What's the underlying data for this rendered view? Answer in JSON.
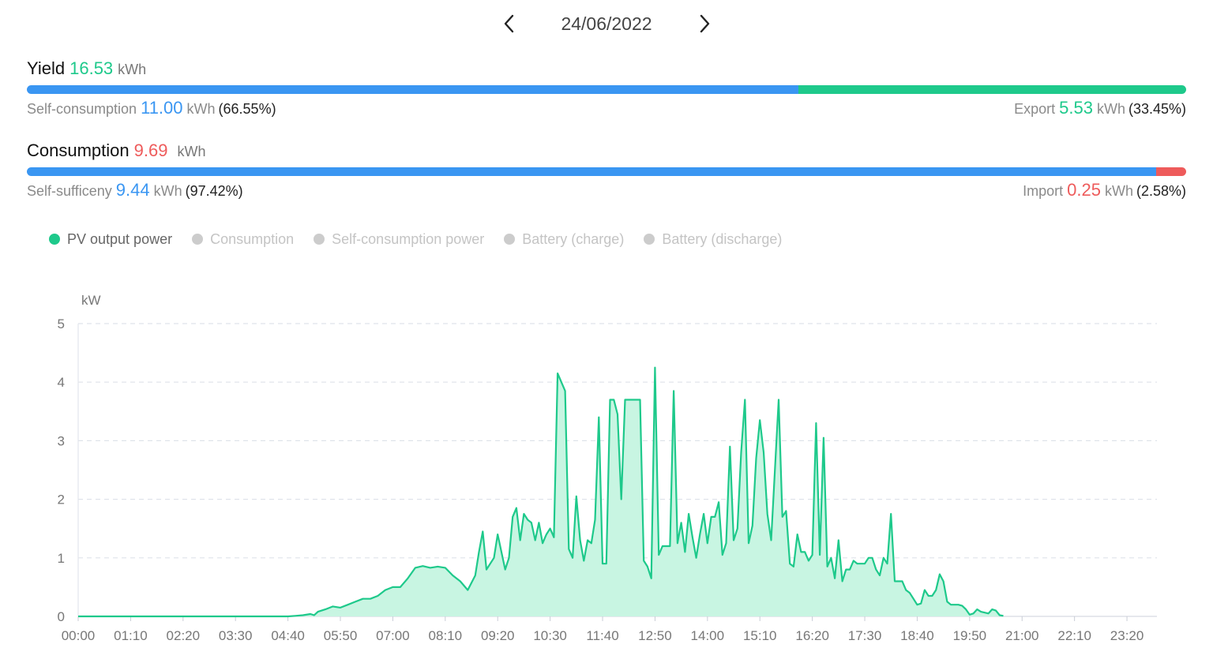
{
  "date_nav": {
    "date": "24/06/2022"
  },
  "yield": {
    "label": "Yield",
    "value": "16.53",
    "unit": "kWh",
    "self_consumption": {
      "label": "Self-consumption",
      "value": "11.00",
      "unit": "kWh",
      "pct": "(66.55%)",
      "fraction": 0.6655
    },
    "export": {
      "label": "Export",
      "value": "5.53",
      "unit": "kWh",
      "pct": "(33.45%)",
      "fraction": 0.3345
    }
  },
  "consumption": {
    "label": "Consumption",
    "value": "9.69",
    "unit": "kWh",
    "self_sufficiency": {
      "label": "Self-sufficeny",
      "value": "9.44",
      "unit": "kWh",
      "pct": "(97.42%)",
      "fraction": 0.9742
    },
    "import": {
      "label": "Import",
      "value": "0.25",
      "unit": "kWh",
      "pct": "(2.58%)",
      "fraction": 0.0258
    }
  },
  "legend": [
    {
      "label": "PV output power",
      "active": true,
      "color": "#1ec98b"
    },
    {
      "label": "Consumption",
      "active": false,
      "color": "#cccccc"
    },
    {
      "label": "Self-consumption power",
      "active": false,
      "color": "#cccccc"
    },
    {
      "label": "Battery (charge)",
      "active": false,
      "color": "#cccccc"
    },
    {
      "label": "Battery (discharge)",
      "active": false,
      "color": "#cccccc"
    }
  ],
  "colors": {
    "blue": "#3a96f2",
    "green": "#1ec98b",
    "red": "#ee5b5b",
    "area_fill": "#c8f5e2"
  },
  "chart_data": {
    "type": "area",
    "ylabel": "kW",
    "ylim": [
      0,
      5
    ],
    "yticks": [
      "0",
      "1",
      "2",
      "3",
      "4",
      "5"
    ],
    "xlim_minutes": [
      0,
      1440
    ],
    "xtick_labels": [
      "00:00",
      "01:10",
      "02:20",
      "03:30",
      "04:40",
      "05:50",
      "07:00",
      "08:10",
      "09:20",
      "10:30",
      "11:40",
      "12:50",
      "14:00",
      "15:10",
      "16:20",
      "17:30",
      "18:40",
      "19:50",
      "21:00",
      "22:10",
      "23:20"
    ],
    "grid": "horizontal dashed",
    "series": [
      {
        "name": "PV output power",
        "points": [
          [
            "00:00",
            0
          ],
          [
            "04:40",
            0
          ],
          [
            "04:50",
            0.01
          ],
          [
            "05:00",
            0.02
          ],
          [
            "05:10",
            0.04
          ],
          [
            "05:15",
            0.02
          ],
          [
            "05:20",
            0.08
          ],
          [
            "05:30",
            0.12
          ],
          [
            "05:40",
            0.17
          ],
          [
            "05:50",
            0.15
          ],
          [
            "06:00",
            0.2
          ],
          [
            "06:10",
            0.25
          ],
          [
            "06:20",
            0.3
          ],
          [
            "06:30",
            0.3
          ],
          [
            "06:40",
            0.35
          ],
          [
            "06:50",
            0.45
          ],
          [
            "07:00",
            0.5
          ],
          [
            "07:10",
            0.5
          ],
          [
            "07:20",
            0.65
          ],
          [
            "07:30",
            0.83
          ],
          [
            "07:40",
            0.86
          ],
          [
            "07:50",
            0.83
          ],
          [
            "08:00",
            0.85
          ],
          [
            "08:10",
            0.83
          ],
          [
            "08:20",
            0.7
          ],
          [
            "08:30",
            0.6
          ],
          [
            "08:40",
            0.45
          ],
          [
            "08:50",
            0.7
          ],
          [
            "08:55",
            1.1
          ],
          [
            "09:00",
            1.45
          ],
          [
            "09:05",
            0.8
          ],
          [
            "09:15",
            1.0
          ],
          [
            "09:20",
            1.4
          ],
          [
            "09:30",
            0.8
          ],
          [
            "09:35",
            1.0
          ],
          [
            "09:40",
            1.7
          ],
          [
            "09:45",
            1.85
          ],
          [
            "09:50",
            1.3
          ],
          [
            "09:55",
            1.75
          ],
          [
            "10:00",
            1.65
          ],
          [
            "10:05",
            1.6
          ],
          [
            "10:10",
            1.3
          ],
          [
            "10:15",
            1.6
          ],
          [
            "10:20",
            1.25
          ],
          [
            "10:25",
            1.4
          ],
          [
            "10:30",
            1.5
          ],
          [
            "10:35",
            1.35
          ],
          [
            "10:40",
            4.15
          ],
          [
            "10:50",
            3.85
          ],
          [
            "10:55",
            1.15
          ],
          [
            "11:00",
            1.0
          ],
          [
            "11:05",
            2.05
          ],
          [
            "11:10",
            1.3
          ],
          [
            "11:15",
            0.95
          ],
          [
            "11:20",
            1.3
          ],
          [
            "11:25",
            1.25
          ],
          [
            "11:30",
            1.65
          ],
          [
            "11:35",
            3.4
          ],
          [
            "11:40",
            0.9
          ],
          [
            "11:45",
            0.9
          ],
          [
            "11:50",
            3.7
          ],
          [
            "11:55",
            3.7
          ],
          [
            "12:00",
            3.45
          ],
          [
            "12:05",
            2.0
          ],
          [
            "12:10",
            3.7
          ],
          [
            "12:30",
            3.7
          ],
          [
            "12:35",
            0.95
          ],
          [
            "12:40",
            0.85
          ],
          [
            "12:45",
            0.65
          ],
          [
            "12:50",
            4.25
          ],
          [
            "12:55",
            1.05
          ],
          [
            "13:00",
            1.2
          ],
          [
            "13:10",
            1.2
          ],
          [
            "13:15",
            3.85
          ],
          [
            "13:20",
            1.25
          ],
          [
            "13:25",
            1.6
          ],
          [
            "13:30",
            1.1
          ],
          [
            "13:35",
            1.75
          ],
          [
            "13:40",
            1.35
          ],
          [
            "13:45",
            1.0
          ],
          [
            "13:50",
            1.4
          ],
          [
            "13:55",
            1.75
          ],
          [
            "14:00",
            1.25
          ],
          [
            "14:05",
            1.7
          ],
          [
            "14:10",
            1.7
          ],
          [
            "14:15",
            1.95
          ],
          [
            "14:20",
            1.05
          ],
          [
            "14:25",
            1.25
          ],
          [
            "14:30",
            2.9
          ],
          [
            "14:35",
            1.3
          ],
          [
            "14:40",
            1.5
          ],
          [
            "14:45",
            2.8
          ],
          [
            "14:50",
            3.7
          ],
          [
            "14:55",
            1.25
          ],
          [
            "15:00",
            1.55
          ],
          [
            "15:05",
            2.7
          ],
          [
            "15:10",
            3.35
          ],
          [
            "15:15",
            2.8
          ],
          [
            "15:20",
            1.75
          ],
          [
            "15:25",
            1.3
          ],
          [
            "15:35",
            3.7
          ],
          [
            "15:40",
            1.7
          ],
          [
            "15:45",
            1.8
          ],
          [
            "15:50",
            0.9
          ],
          [
            "15:55",
            0.85
          ],
          [
            "16:00",
            1.4
          ],
          [
            "16:05",
            1.1
          ],
          [
            "16:10",
            1.1
          ],
          [
            "16:15",
            0.95
          ],
          [
            "16:20",
            1.05
          ],
          [
            "16:25",
            3.3
          ],
          [
            "16:30",
            1.05
          ],
          [
            "16:35",
            3.05
          ],
          [
            "16:40",
            0.85
          ],
          [
            "16:45",
            1.0
          ],
          [
            "16:50",
            0.65
          ],
          [
            "16:55",
            1.3
          ],
          [
            "17:00",
            0.6
          ],
          [
            "17:05",
            0.8
          ],
          [
            "17:10",
            0.8
          ],
          [
            "17:15",
            0.95
          ],
          [
            "17:20",
            0.9
          ],
          [
            "17:30",
            0.9
          ],
          [
            "17:35",
            1.0
          ],
          [
            "17:40",
            1.0
          ],
          [
            "17:45",
            0.8
          ],
          [
            "17:50",
            0.7
          ],
          [
            "17:55",
            1.0
          ],
          [
            "18:00",
            0.9
          ],
          [
            "18:05",
            1.75
          ],
          [
            "18:10",
            0.6
          ],
          [
            "18:20",
            0.6
          ],
          [
            "18:25",
            0.45
          ],
          [
            "18:30",
            0.4
          ],
          [
            "18:35",
            0.3
          ],
          [
            "18:40",
            0.2
          ],
          [
            "18:45",
            0.22
          ],
          [
            "18:50",
            0.45
          ],
          [
            "18:55",
            0.35
          ],
          [
            "19:00",
            0.35
          ],
          [
            "19:05",
            0.45
          ],
          [
            "19:10",
            0.72
          ],
          [
            "19:15",
            0.6
          ],
          [
            "19:20",
            0.25
          ],
          [
            "19:25",
            0.2
          ],
          [
            "19:35",
            0.2
          ],
          [
            "19:40",
            0.18
          ],
          [
            "19:45",
            0.12
          ],
          [
            "19:50",
            0.03
          ],
          [
            "19:55",
            0.05
          ],
          [
            "20:00",
            0.12
          ],
          [
            "20:05",
            0.08
          ],
          [
            "20:15",
            0.05
          ],
          [
            "20:20",
            0.12
          ],
          [
            "20:25",
            0.1
          ],
          [
            "20:30",
            0.02
          ],
          [
            "20:35",
            0.01
          ]
        ]
      }
    ]
  }
}
